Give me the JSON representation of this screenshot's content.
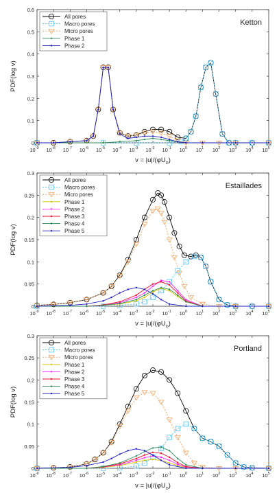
{
  "chart_data": [
    {
      "type": "line",
      "title": "Ketton",
      "ylabel": "PDF(log v)",
      "xlabel": "v = |u|/(φU",
      "xlabel_sub": "D",
      "xlabel_close": ")",
      "xscale": "log",
      "xlim": [
        1e-09,
        100000.0
      ],
      "ylim": [
        0,
        0.6
      ],
      "yticks": [
        "0",
        "0.1",
        "0.2",
        "0.3",
        "0.4",
        "0.5",
        "0.6"
      ],
      "legend_position": "top-left",
      "series": [
        {
          "name": "All pores",
          "color": "#000000",
          "marker": "circle",
          "dash": "",
          "x": [
            -9,
            -8,
            -7,
            -6,
            -5.6,
            -5.3,
            -5,
            -4.7,
            -4.4,
            -4,
            -3.5,
            -3,
            -2.5,
            -2,
            -1.5,
            -1,
            -0.5,
            0,
            0.3,
            0.6,
            0.9,
            1.2,
            1.5,
            1.8,
            2.2,
            2.6,
            3,
            4,
            5
          ],
          "y": [
            0,
            0,
            0.005,
            0.01,
            0.03,
            0.15,
            0.34,
            0.34,
            0.15,
            0.045,
            0.03,
            0.035,
            0.05,
            0.06,
            0.06,
            0.05,
            0.025,
            0.02,
            0.05,
            0.12,
            0.25,
            0.34,
            0.36,
            0.22,
            0.04,
            0,
            0,
            0,
            0
          ]
        },
        {
          "name": "Macro pores",
          "color": "#4fc3f7",
          "marker": "square",
          "dash": "2,2",
          "x": [
            -9,
            -5,
            -3,
            -1,
            -0.3,
            0,
            0.3,
            0.6,
            0.9,
            1.2,
            1.5,
            1.8,
            2.2,
            2.6,
            3,
            4,
            5
          ],
          "y": [
            0,
            0,
            0,
            0,
            0.005,
            0.02,
            0.05,
            0.12,
            0.25,
            0.34,
            0.36,
            0.22,
            0.04,
            0,
            0,
            0,
            0
          ]
        },
        {
          "name": "Micro pores",
          "color": "#f4a460",
          "marker": "triangle-down",
          "dash": "2,2",
          "x": [
            -9,
            -8,
            -7,
            -6,
            -5.6,
            -5.3,
            -5,
            -4.7,
            -4.4,
            -4,
            -3.5,
            -3,
            -2.5,
            -2,
            -1.5,
            -1,
            -0.5,
            0,
            1,
            2,
            3,
            5
          ],
          "y": [
            0,
            0,
            0.005,
            0.01,
            0.03,
            0.15,
            0.34,
            0.34,
            0.15,
            0.045,
            0.03,
            0.035,
            0.045,
            0.05,
            0.045,
            0.03,
            0.01,
            0,
            0,
            0,
            0,
            0
          ]
        },
        {
          "name": "Phase 1",
          "color": "#2e8b57",
          "marker": "dot",
          "dash": "",
          "x": [
            -9,
            -5,
            -4,
            -3,
            -2.5,
            -2,
            -1.5,
            -1,
            -0.5,
            0,
            1,
            3,
            5
          ],
          "y": [
            0,
            0,
            0.005,
            0.01,
            0.015,
            0.02,
            0.015,
            0.01,
            0.004,
            0,
            0,
            0,
            0
          ]
        },
        {
          "name": "Phase 2",
          "color": "#1f1fbf",
          "marker": "dot",
          "dash": "",
          "x": [
            -9,
            -8,
            -7,
            -6,
            -5.6,
            -5.3,
            -5,
            -4.7,
            -4.4,
            -4,
            -3.5,
            -3,
            -2.5,
            -2,
            -1.5,
            -1,
            -0.5,
            0,
            1,
            3,
            5
          ],
          "y": [
            0,
            0,
            0.005,
            0.01,
            0.03,
            0.15,
            0.34,
            0.34,
            0.15,
            0.04,
            0.02,
            0.025,
            0.03,
            0.03,
            0.025,
            0.015,
            0.005,
            0,
            0,
            0,
            0
          ]
        }
      ]
    },
    {
      "type": "line",
      "title": "Estaillades",
      "ylabel": "PDF(log v)",
      "xlabel": "v = |u|/(φU",
      "xlabel_sub": "D",
      "xlabel_close": ")",
      "xscale": "log",
      "xlim": [
        1e-09,
        100000.0
      ],
      "ylim": [
        0,
        0.3
      ],
      "yticks": [
        "0",
        "0.05",
        "0.1",
        "0.15",
        "0.2",
        "0.25",
        "0.3"
      ],
      "legend_position": "top-left",
      "series": [
        {
          "name": "All pores",
          "color": "#000000",
          "marker": "circle",
          "dash": "",
          "x": [
            -9,
            -8,
            -7,
            -6,
            -5,
            -4.5,
            -4,
            -3.5,
            -3,
            -2.5,
            -2,
            -1.7,
            -1.5,
            -1.3,
            -1,
            -0.7,
            -0.4,
            -0.1,
            0.3,
            0.6,
            0.9,
            1.2,
            1.5,
            2,
            2.5,
            3,
            4,
            5
          ],
          "y": [
            0.002,
            0.004,
            0.008,
            0.015,
            0.03,
            0.045,
            0.07,
            0.105,
            0.15,
            0.2,
            0.24,
            0.255,
            0.25,
            0.235,
            0.2,
            0.165,
            0.135,
            0.115,
            0.112,
            0.115,
            0.11,
            0.09,
            0.055,
            0.015,
            0.003,
            0,
            0,
            0
          ]
        },
        {
          "name": "Macro pores",
          "color": "#4fc3f7",
          "marker": "square",
          "dash": "2,2",
          "x": [
            -9,
            -5,
            -4,
            -3,
            -2.5,
            -2,
            -1.5,
            -1,
            -0.5,
            0,
            0.5,
            0.9,
            1.2,
            1.5,
            2,
            2.5,
            3,
            4,
            5
          ],
          "y": [
            0,
            0,
            0.002,
            0.005,
            0.01,
            0.02,
            0.035,
            0.055,
            0.08,
            0.1,
            0.112,
            0.11,
            0.09,
            0.055,
            0.015,
            0.003,
            0,
            0,
            0
          ]
        },
        {
          "name": "Micro pores",
          "color": "#f4a460",
          "marker": "triangle-down",
          "dash": "2,2",
          "x": [
            -9,
            -8,
            -7,
            -6,
            -5,
            -4.5,
            -4,
            -3.5,
            -3,
            -2.5,
            -2,
            -1.7,
            -1.5,
            -1.3,
            -1,
            -0.7,
            -0.4,
            -0.1,
            0.3,
            1,
            2,
            3,
            5
          ],
          "y": [
            0.002,
            0.004,
            0.008,
            0.015,
            0.03,
            0.045,
            0.068,
            0.1,
            0.14,
            0.185,
            0.215,
            0.22,
            0.21,
            0.19,
            0.15,
            0.11,
            0.075,
            0.045,
            0.02,
            0.005,
            0,
            0,
            0
          ]
        },
        {
          "name": "Phase 1",
          "color": "#d4c400",
          "marker": "dot",
          "dash": "",
          "x": [
            -9,
            -6,
            -5,
            -4,
            -3,
            -2.5,
            -2,
            -1.5,
            -1,
            -0.5,
            0,
            1,
            3,
            5
          ],
          "y": [
            0,
            0,
            0.002,
            0.005,
            0.012,
            0.02,
            0.032,
            0.04,
            0.035,
            0.022,
            0.01,
            0,
            0,
            0
          ]
        },
        {
          "name": "Phase 2",
          "color": "#ff1fff",
          "marker": "dot",
          "dash": "",
          "x": [
            -9,
            -6,
            -5,
            -4,
            -3,
            -2.5,
            -2,
            -1.5,
            -1,
            -0.5,
            0,
            1,
            3,
            5
          ],
          "y": [
            0,
            0,
            0.002,
            0.008,
            0.02,
            0.03,
            0.045,
            0.058,
            0.055,
            0.035,
            0.015,
            0,
            0,
            0
          ]
        },
        {
          "name": "Phase 3",
          "color": "#e8102a",
          "marker": "dot",
          "dash": "",
          "x": [
            -9,
            -6,
            -5,
            -4,
            -3,
            -2.5,
            -2,
            -1.5,
            -1,
            -0.5,
            0,
            1,
            3,
            5
          ],
          "y": [
            0,
            0,
            0.003,
            0.01,
            0.025,
            0.038,
            0.05,
            0.055,
            0.048,
            0.03,
            0.012,
            0,
            0,
            0
          ]
        },
        {
          "name": "Phase 4",
          "color": "#2e8b57",
          "marker": "dot",
          "dash": "",
          "x": [
            -9,
            -6,
            -5,
            -4,
            -3,
            -2.5,
            -2,
            -1.5,
            -1,
            -0.5,
            0,
            1,
            3,
            5
          ],
          "y": [
            0,
            0,
            0.002,
            0.006,
            0.015,
            0.025,
            0.035,
            0.042,
            0.038,
            0.025,
            0.01,
            0,
            0,
            0
          ]
        },
        {
          "name": "Phase 5",
          "color": "#1f1fbf",
          "marker": "dot",
          "dash": "",
          "x": [
            -9,
            -7,
            -6,
            -5,
            -4.5,
            -4,
            -3.5,
            -3,
            -2.5,
            -2,
            -1.5,
            -1,
            0,
            1,
            3,
            5
          ],
          "y": [
            0,
            0.002,
            0.005,
            0.012,
            0.02,
            0.03,
            0.038,
            0.042,
            0.038,
            0.028,
            0.015,
            0.005,
            0,
            0,
            0,
            0
          ]
        }
      ]
    },
    {
      "type": "line",
      "title": "Portland",
      "ylabel": "PDF(log v)",
      "xlabel": "v = |u|/(φU",
      "xlabel_sub": "D",
      "xlabel_close": ")",
      "xscale": "log",
      "xlim": [
        1e-09,
        100000.0
      ],
      "ylim": [
        0,
        0.3
      ],
      "yticks": [
        "0",
        "0.05",
        "0.1",
        "0.15",
        "0.2",
        "0.25",
        "0.3"
      ],
      "legend_position": "top-left",
      "series": [
        {
          "name": "All pores",
          "color": "#000000",
          "marker": "circle",
          "dash": "",
          "x": [
            -9,
            -8,
            -7,
            -6,
            -5.5,
            -5,
            -4.5,
            -4,
            -3.5,
            -3,
            -2.5,
            -2,
            -1.5,
            -1,
            -0.5,
            0,
            0.5,
            1,
            1.5,
            2,
            2.5,
            3,
            3.5,
            4,
            5
          ],
          "y": [
            0,
            0.001,
            0.003,
            0.01,
            0.02,
            0.035,
            0.06,
            0.1,
            0.14,
            0.18,
            0.21,
            0.222,
            0.218,
            0.2,
            0.17,
            0.13,
            0.09,
            0.068,
            0.06,
            0.05,
            0.03,
            0.012,
            0.003,
            0.001,
            0
          ]
        },
        {
          "name": "Macro pores",
          "color": "#4fc3f7",
          "marker": "square",
          "dash": "2,2",
          "x": [
            -9,
            -5,
            -4,
            -3,
            -2.5,
            -2,
            -1.5,
            -1,
            -0.5,
            0,
            0.5,
            1,
            1.5,
            2,
            2.5,
            3,
            3.5,
            4,
            5
          ],
          "y": [
            0,
            0,
            0.001,
            0.005,
            0.012,
            0.025,
            0.045,
            0.07,
            0.09,
            0.1,
            0.09,
            0.068,
            0.06,
            0.05,
            0.03,
            0.012,
            0.003,
            0.001,
            0
          ]
        },
        {
          "name": "Micro pores",
          "color": "#f4a460",
          "marker": "triangle-down",
          "dash": "2,2",
          "x": [
            -9,
            -8,
            -7,
            -6,
            -5.5,
            -5,
            -4.5,
            -4,
            -3.5,
            -3,
            -2.5,
            -2,
            -1.5,
            -1,
            -0.5,
            0,
            0.5,
            1,
            2,
            3,
            5
          ],
          "y": [
            0,
            0.001,
            0.003,
            0.01,
            0.02,
            0.035,
            0.058,
            0.095,
            0.13,
            0.16,
            0.172,
            0.17,
            0.15,
            0.11,
            0.07,
            0.035,
            0.012,
            0.003,
            0,
            0,
            0
          ]
        },
        {
          "name": "Phase 1",
          "color": "#d4c400",
          "marker": "dot",
          "dash": "",
          "x": [
            -9,
            -6,
            -5,
            -4,
            -3,
            -2.5,
            -2,
            -1.5,
            -1,
            -0.5,
            0,
            1,
            3,
            5
          ],
          "y": [
            0,
            0,
            0.002,
            0.006,
            0.014,
            0.018,
            0.02,
            0.018,
            0.012,
            0.006,
            0.002,
            0,
            0,
            0
          ]
        },
        {
          "name": "Phase 2",
          "color": "#ff1fff",
          "marker": "dot",
          "dash": "",
          "x": [
            -9,
            -6,
            -5,
            -4,
            -3,
            -2.5,
            -2,
            -1.5,
            -1,
            -0.5,
            0,
            1,
            3,
            5
          ],
          "y": [
            0,
            0,
            0.003,
            0.008,
            0.018,
            0.024,
            0.028,
            0.025,
            0.018,
            0.009,
            0.003,
            0,
            0,
            0
          ]
        },
        {
          "name": "Phase 3",
          "color": "#e8102a",
          "marker": "dot",
          "dash": "",
          "x": [
            -9,
            -6,
            -5,
            -4,
            -3,
            -2.5,
            -2,
            -1.5,
            -1,
            -0.5,
            0,
            1,
            3,
            5
          ],
          "y": [
            0,
            0,
            0.003,
            0.01,
            0.022,
            0.03,
            0.036,
            0.034,
            0.025,
            0.013,
            0.004,
            0,
            0,
            0
          ]
        },
        {
          "name": "Phase 4",
          "color": "#2e8b57",
          "marker": "dot",
          "dash": "",
          "x": [
            -9,
            -6,
            -5,
            -4,
            -3,
            -2.5,
            -2,
            -1.5,
            -1,
            -0.5,
            0,
            1,
            3,
            5
          ],
          "y": [
            0,
            0,
            0.004,
            0.012,
            0.028,
            0.038,
            0.046,
            0.048,
            0.04,
            0.022,
            0.008,
            0,
            0,
            0
          ]
        },
        {
          "name": "Phase 5",
          "color": "#1f1fbf",
          "marker": "dot",
          "dash": "",
          "x": [
            -9,
            -7,
            -6,
            -5,
            -4.5,
            -4,
            -3.5,
            -3,
            -2.5,
            -2,
            -1.5,
            -1,
            0,
            1,
            3,
            5
          ],
          "y": [
            0,
            0.002,
            0.006,
            0.014,
            0.022,
            0.032,
            0.04,
            0.044,
            0.04,
            0.03,
            0.018,
            0.008,
            0,
            0,
            0,
            0
          ]
        }
      ]
    }
  ]
}
